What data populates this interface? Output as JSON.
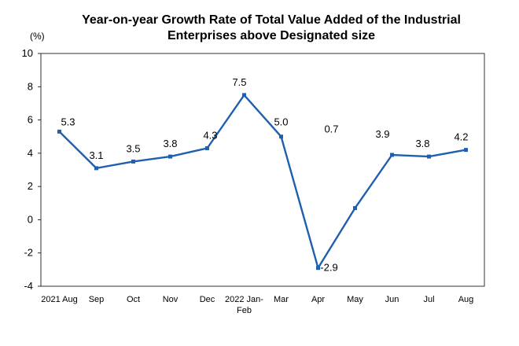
{
  "chart_data": {
    "type": "line",
    "title_lines": [
      "Year-on-year Growth Rate of Total Value Added of the Industrial",
      "Enterprises above Designated size"
    ],
    "y_unit": "(%)",
    "categories": [
      [
        "2021 Aug"
      ],
      [
        "Sep"
      ],
      [
        "Oct"
      ],
      [
        "Nov"
      ],
      [
        "Dec"
      ],
      [
        "2022 Jan-",
        "Feb"
      ],
      [
        "Mar"
      ],
      [
        "Apr"
      ],
      [
        "May"
      ],
      [
        "Jun"
      ],
      [
        "Jul"
      ],
      [
        "Aug"
      ]
    ],
    "series": [
      {
        "values": [
          5.3,
          3.1,
          3.5,
          3.8,
          4.3,
          7.5,
          5.0,
          -2.9,
          0.7,
          3.9,
          3.8,
          4.2
        ]
      }
    ],
    "data_labels": [
      "5.3",
      "3.1",
      "3.5",
      "3.8",
      "4.3",
      "7.5",
      "5.0",
      "-2.9",
      "0.7",
      "3.9",
      "3.8",
      "4.2"
    ],
    "ylim": [
      -4,
      10
    ],
    "yticks": [
      -4,
      -2,
      0,
      2,
      4,
      6,
      8,
      10
    ],
    "grid": false,
    "legend": "none",
    "line_color": "#1F5FAF"
  }
}
